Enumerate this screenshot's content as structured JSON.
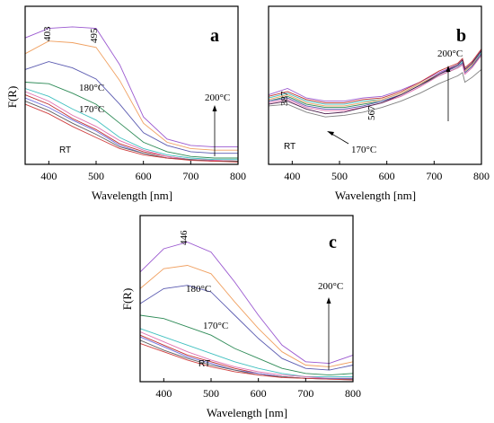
{
  "chart_data": [
    {
      "type": "line",
      "panel_label": "a",
      "xlabel": "Wavelength [nm]",
      "ylabel": "F(R)",
      "xlim": [
        350,
        800
      ],
      "xticks": [
        400,
        500,
        600,
        700,
        800
      ],
      "annotations": {
        "peak_left": "403",
        "peak_right": "495",
        "t180": "180°C",
        "t170": "170°C",
        "rt": "RT",
        "t200": "200°C"
      },
      "x": [
        350,
        400,
        450,
        500,
        550,
        600,
        650,
        700,
        750,
        800
      ],
      "series": [
        {
          "color": "#9b59d0",
          "values": [
            0.8,
            0.86,
            0.87,
            0.86,
            0.63,
            0.3,
            0.16,
            0.12,
            0.11,
            0.11
          ]
        },
        {
          "color": "#f0a060",
          "values": [
            0.7,
            0.78,
            0.77,
            0.74,
            0.53,
            0.26,
            0.14,
            0.1,
            0.09,
            0.09
          ]
        },
        {
          "color": "#5a5ab0",
          "values": [
            0.6,
            0.65,
            0.61,
            0.54,
            0.38,
            0.2,
            0.12,
            0.08,
            0.07,
            0.07
          ]
        },
        {
          "color": "#2e8b57",
          "values": [
            0.52,
            0.51,
            0.45,
            0.38,
            0.26,
            0.14,
            0.08,
            0.05,
            0.04,
            0.04
          ]
        },
        {
          "color": "#40c0c0",
          "values": [
            0.48,
            0.43,
            0.35,
            0.28,
            0.17,
            0.1,
            0.06,
            0.04,
            0.03,
            0.03
          ]
        },
        {
          "color": "#c03030",
          "values": [
            0.44,
            0.38,
            0.29,
            0.22,
            0.13,
            0.08,
            0.05,
            0.03,
            0.025,
            0.02
          ]
        },
        {
          "color": "#e070b0",
          "values": [
            0.46,
            0.4,
            0.31,
            0.24,
            0.15,
            0.09,
            0.05,
            0.03,
            0.025,
            0.02
          ]
        },
        {
          "color": "#7070e0",
          "values": [
            0.42,
            0.36,
            0.28,
            0.21,
            0.12,
            0.07,
            0.04,
            0.03,
            0.02,
            0.02
          ]
        },
        {
          "color": "#606060",
          "values": [
            0.4,
            0.34,
            0.26,
            0.19,
            0.11,
            0.07,
            0.04,
            0.03,
            0.02,
            0.02
          ]
        },
        {
          "color": "#d04040",
          "values": [
            0.38,
            0.32,
            0.24,
            0.17,
            0.1,
            0.06,
            0.04,
            0.025,
            0.02,
            0.015
          ]
        }
      ]
    },
    {
      "type": "line",
      "panel_label": "b",
      "xlabel": "Wavelength [nm]",
      "ylabel": "",
      "xlim": [
        350,
        800
      ],
      "xticks": [
        400,
        500,
        600,
        700,
        800
      ],
      "annotations": {
        "peak_left": "387",
        "peak_right": "567",
        "rt": "RT",
        "t170": "170°C",
        "t200": "200°C"
      },
      "x": [
        350,
        390,
        430,
        470,
        510,
        550,
        590,
        630,
        670,
        710,
        750,
        760,
        765,
        780,
        800
      ],
      "series": [
        {
          "color": "#9b59d0",
          "values": [
            0.44,
            0.48,
            0.42,
            0.4,
            0.4,
            0.42,
            0.43,
            0.47,
            0.52,
            0.58,
            0.63,
            0.66,
            0.6,
            0.64,
            0.72
          ]
        },
        {
          "color": "#c03030",
          "values": [
            0.43,
            0.46,
            0.41,
            0.39,
            0.39,
            0.41,
            0.42,
            0.46,
            0.52,
            0.59,
            0.64,
            0.67,
            0.61,
            0.65,
            0.73
          ]
        },
        {
          "color": "#40c0c0",
          "values": [
            0.42,
            0.45,
            0.4,
            0.38,
            0.38,
            0.4,
            0.41,
            0.45,
            0.51,
            0.57,
            0.62,
            0.65,
            0.59,
            0.63,
            0.71
          ]
        },
        {
          "color": "#f0a060",
          "values": [
            0.41,
            0.44,
            0.39,
            0.37,
            0.37,
            0.39,
            0.41,
            0.45,
            0.51,
            0.57,
            0.62,
            0.64,
            0.59,
            0.63,
            0.7
          ]
        },
        {
          "color": "#2e8b57",
          "values": [
            0.4,
            0.43,
            0.38,
            0.36,
            0.36,
            0.38,
            0.4,
            0.44,
            0.5,
            0.56,
            0.61,
            0.63,
            0.58,
            0.62,
            0.69
          ]
        },
        {
          "color": "#5a5ab0",
          "values": [
            0.4,
            0.42,
            0.37,
            0.35,
            0.35,
            0.37,
            0.4,
            0.44,
            0.5,
            0.57,
            0.62,
            0.64,
            0.58,
            0.62,
            0.7
          ]
        },
        {
          "color": "#e070b0",
          "values": [
            0.39,
            0.41,
            0.36,
            0.34,
            0.34,
            0.36,
            0.39,
            0.43,
            0.49,
            0.56,
            0.61,
            0.63,
            0.57,
            0.61,
            0.69
          ]
        },
        {
          "color": "#4a1a4a",
          "values": [
            0.38,
            0.4,
            0.35,
            0.32,
            0.33,
            0.36,
            0.39,
            0.44,
            0.5,
            0.57,
            0.63,
            0.66,
            0.6,
            0.64,
            0.72
          ]
        },
        {
          "color": "#808080",
          "values": [
            0.37,
            0.38,
            0.33,
            0.3,
            0.31,
            0.33,
            0.36,
            0.4,
            0.45,
            0.51,
            0.56,
            0.58,
            0.52,
            0.55,
            0.6
          ]
        }
      ]
    },
    {
      "type": "line",
      "panel_label": "c",
      "xlabel": "Wavelength [nm]",
      "ylabel": "F(R)",
      "xlim": [
        350,
        800
      ],
      "xticks": [
        400,
        500,
        600,
        700,
        800
      ],
      "annotations": {
        "peak": "446",
        "t180": "180°C",
        "t170": "170°C",
        "rt": "RT",
        "t200": "200°C"
      },
      "x": [
        350,
        400,
        450,
        500,
        550,
        600,
        650,
        700,
        750,
        800
      ],
      "series": [
        {
          "color": "#9b59d0",
          "values": [
            0.66,
            0.8,
            0.84,
            0.78,
            0.6,
            0.4,
            0.22,
            0.12,
            0.11,
            0.16
          ]
        },
        {
          "color": "#f0a060",
          "values": [
            0.56,
            0.68,
            0.7,
            0.65,
            0.48,
            0.32,
            0.18,
            0.1,
            0.09,
            0.12
          ]
        },
        {
          "color": "#5a5ab0",
          "values": [
            0.47,
            0.56,
            0.58,
            0.54,
            0.4,
            0.26,
            0.14,
            0.08,
            0.07,
            0.1
          ]
        },
        {
          "color": "#2e8b57",
          "values": [
            0.4,
            0.38,
            0.33,
            0.28,
            0.2,
            0.14,
            0.08,
            0.05,
            0.04,
            0.05
          ]
        },
        {
          "color": "#40c0c0",
          "values": [
            0.32,
            0.27,
            0.22,
            0.17,
            0.12,
            0.08,
            0.05,
            0.03,
            0.03,
            0.03
          ]
        },
        {
          "color": "#c03030",
          "values": [
            0.28,
            0.22,
            0.16,
            0.12,
            0.08,
            0.05,
            0.03,
            0.02,
            0.02,
            0.02
          ]
        },
        {
          "color": "#e070b0",
          "values": [
            0.3,
            0.24,
            0.18,
            0.13,
            0.09,
            0.06,
            0.04,
            0.03,
            0.02,
            0.02
          ]
        },
        {
          "color": "#7070e0",
          "values": [
            0.27,
            0.21,
            0.15,
            0.11,
            0.07,
            0.05,
            0.03,
            0.02,
            0.02,
            0.02
          ]
        },
        {
          "color": "#606060",
          "values": [
            0.25,
            0.19,
            0.14,
            0.1,
            0.07,
            0.04,
            0.03,
            0.02,
            0.015,
            0.015
          ]
        },
        {
          "color": "#d04040",
          "values": [
            0.23,
            0.18,
            0.13,
            0.09,
            0.06,
            0.04,
            0.025,
            0.02,
            0.015,
            0.01
          ]
        }
      ]
    }
  ]
}
